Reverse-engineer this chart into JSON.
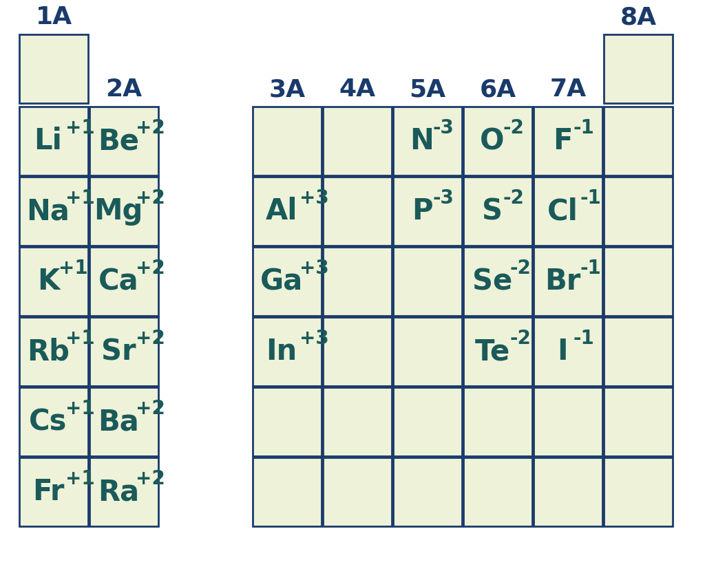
{
  "bg_color": "#ffffff",
  "cell_color": "#eef2d8",
  "border_color": "#1a3a6b",
  "text_color": "#1a5a5a",
  "header_color": "#1a3a6b",
  "cells": [
    {
      "col": 0,
      "row": 0,
      "element": "",
      "charge": ""
    },
    {
      "col": 8,
      "row": 0,
      "element": "",
      "charge": ""
    },
    {
      "col": 0,
      "row": 1,
      "element": "Li",
      "charge": "+1"
    },
    {
      "col": 1,
      "row": 1,
      "element": "Be",
      "charge": "+2"
    },
    {
      "col": 3,
      "row": 1,
      "element": "",
      "charge": ""
    },
    {
      "col": 4,
      "row": 1,
      "element": "",
      "charge": ""
    },
    {
      "col": 5,
      "row": 1,
      "element": "N",
      "charge": "-3"
    },
    {
      "col": 6,
      "row": 1,
      "element": "O",
      "charge": "-2"
    },
    {
      "col": 7,
      "row": 1,
      "element": "F",
      "charge": "-1"
    },
    {
      "col": 8,
      "row": 1,
      "element": "",
      "charge": ""
    },
    {
      "col": 0,
      "row": 2,
      "element": "Na",
      "charge": "+1"
    },
    {
      "col": 1,
      "row": 2,
      "element": "Mg",
      "charge": "+2"
    },
    {
      "col": 3,
      "row": 2,
      "element": "Al",
      "charge": "+3"
    },
    {
      "col": 4,
      "row": 2,
      "element": "",
      "charge": ""
    },
    {
      "col": 5,
      "row": 2,
      "element": "P",
      "charge": "-3"
    },
    {
      "col": 6,
      "row": 2,
      "element": "S",
      "charge": "-2"
    },
    {
      "col": 7,
      "row": 2,
      "element": "Cl",
      "charge": "-1"
    },
    {
      "col": 8,
      "row": 2,
      "element": "",
      "charge": ""
    },
    {
      "col": 0,
      "row": 3,
      "element": "K",
      "charge": "+1"
    },
    {
      "col": 1,
      "row": 3,
      "element": "Ca",
      "charge": "+2"
    },
    {
      "col": 3,
      "row": 3,
      "element": "Ga",
      "charge": "+3"
    },
    {
      "col": 4,
      "row": 3,
      "element": "",
      "charge": ""
    },
    {
      "col": 5,
      "row": 3,
      "element": "",
      "charge": ""
    },
    {
      "col": 6,
      "row": 3,
      "element": "Se",
      "charge": "-2"
    },
    {
      "col": 7,
      "row": 3,
      "element": "Br",
      "charge": "-1"
    },
    {
      "col": 8,
      "row": 3,
      "element": "",
      "charge": ""
    },
    {
      "col": 0,
      "row": 4,
      "element": "Rb",
      "charge": "+1"
    },
    {
      "col": 1,
      "row": 4,
      "element": "Sr",
      "charge": "+2"
    },
    {
      "col": 3,
      "row": 4,
      "element": "In",
      "charge": "+3"
    },
    {
      "col": 4,
      "row": 4,
      "element": "",
      "charge": ""
    },
    {
      "col": 5,
      "row": 4,
      "element": "",
      "charge": ""
    },
    {
      "col": 6,
      "row": 4,
      "element": "Te",
      "charge": "-2"
    },
    {
      "col": 7,
      "row": 4,
      "element": "I",
      "charge": "-1"
    },
    {
      "col": 8,
      "row": 4,
      "element": "",
      "charge": ""
    },
    {
      "col": 0,
      "row": 5,
      "element": "Cs",
      "charge": "+1"
    },
    {
      "col": 1,
      "row": 5,
      "element": "Ba",
      "charge": "+2"
    },
    {
      "col": 3,
      "row": 5,
      "element": "",
      "charge": ""
    },
    {
      "col": 4,
      "row": 5,
      "element": "",
      "charge": ""
    },
    {
      "col": 5,
      "row": 5,
      "element": "",
      "charge": ""
    },
    {
      "col": 6,
      "row": 5,
      "element": "",
      "charge": ""
    },
    {
      "col": 7,
      "row": 5,
      "element": "",
      "charge": ""
    },
    {
      "col": 8,
      "row": 5,
      "element": "",
      "charge": ""
    },
    {
      "col": 0,
      "row": 6,
      "element": "Fr",
      "charge": "+1"
    },
    {
      "col": 1,
      "row": 6,
      "element": "Ra",
      "charge": "+2"
    },
    {
      "col": 3,
      "row": 6,
      "element": "",
      "charge": ""
    },
    {
      "col": 4,
      "row": 6,
      "element": "",
      "charge": ""
    },
    {
      "col": 5,
      "row": 6,
      "element": "",
      "charge": ""
    },
    {
      "col": 6,
      "row": 6,
      "element": "",
      "charge": ""
    },
    {
      "col": 7,
      "row": 6,
      "element": "",
      "charge": ""
    },
    {
      "col": 8,
      "row": 6,
      "element": "",
      "charge": ""
    }
  ],
  "group_headers": [
    {
      "label": "1A",
      "col": 0,
      "row_above": 0
    },
    {
      "label": "2A",
      "col": 1,
      "row_above": 1
    },
    {
      "label": "3A",
      "col": 3,
      "row_above": 1
    },
    {
      "label": "4A",
      "col": 4,
      "row_above": 1
    },
    {
      "label": "5A",
      "col": 5,
      "row_above": 1
    },
    {
      "label": "6A",
      "col": 6,
      "row_above": 1
    },
    {
      "label": "7A",
      "col": 7,
      "row_above": 1
    },
    {
      "label": "8A",
      "col": 8,
      "row_above": 0
    }
  ]
}
